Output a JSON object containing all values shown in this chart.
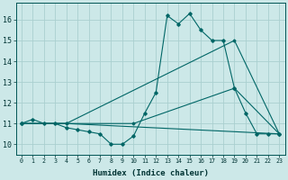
{
  "xlabel": "Humidex (Indice chaleur)",
  "ylabel": "",
  "background_color": "#cce8e8",
  "grid_color": "#aacfcf",
  "line_color": "#006666",
  "xlim": [
    -0.5,
    23.5
  ],
  "ylim": [
    9.5,
    16.8
  ],
  "xtick_labels": [
    "0",
    "1",
    "2",
    "3",
    "4",
    "5",
    "6",
    "7",
    "8",
    "9",
    "10",
    "11",
    "12",
    "13",
    "14",
    "15",
    "16",
    "17",
    "18",
    "19",
    "20",
    "21",
    "22",
    "23"
  ],
  "ytick_labels": [
    "10",
    "11",
    "12",
    "13",
    "14",
    "15",
    "16"
  ],
  "ytick_vals": [
    10,
    11,
    12,
    13,
    14,
    15,
    16
  ],
  "series": [
    {
      "x": [
        0,
        1,
        2,
        3,
        4,
        5,
        6,
        7,
        8,
        9,
        10,
        11,
        12,
        13,
        14,
        15,
        16,
        17,
        18,
        19,
        20,
        21,
        22,
        23
      ],
      "y": [
        11.0,
        11.2,
        11.0,
        11.0,
        10.8,
        10.7,
        10.6,
        10.5,
        10.0,
        10.0,
        10.4,
        11.5,
        12.5,
        16.2,
        15.8,
        16.3,
        15.5,
        15.0,
        15.0,
        12.7,
        11.5,
        10.5,
        10.5,
        10.5
      ]
    },
    {
      "x": [
        0,
        4,
        19,
        23
      ],
      "y": [
        11.0,
        11.0,
        15.0,
        10.5
      ]
    },
    {
      "x": [
        0,
        4,
        23
      ],
      "y": [
        11.0,
        11.0,
        10.5
      ]
    },
    {
      "x": [
        0,
        10,
        19,
        23
      ],
      "y": [
        11.0,
        11.0,
        12.7,
        10.5
      ]
    }
  ]
}
